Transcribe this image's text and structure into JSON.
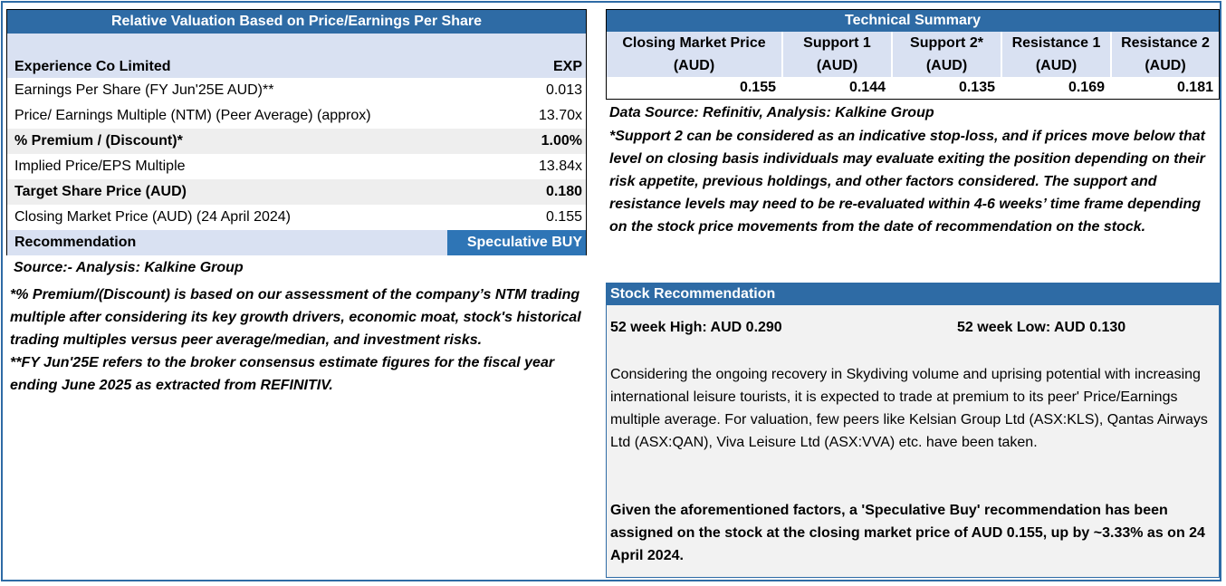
{
  "valuation": {
    "title": "Relative Valuation Based on Price/Earnings Per Share",
    "company": "Experience Co Limited",
    "ticker": "EXP",
    "rows": [
      {
        "label": "Earnings Per Share (FY Jun'25E AUD)**",
        "value": "0.013"
      },
      {
        "label": "Price/ Earnings Multiple (NTM) (Peer Average) (approx)",
        "value": "13.70x"
      },
      {
        "label": "% Premium / (Discount)*",
        "value": "1.00%"
      },
      {
        "label": "Implied Price/EPS Multiple",
        "value": "13.84x"
      },
      {
        "label": "Target Share Price (AUD)",
        "value": "0.180"
      },
      {
        "label": "Closing Market Price (AUD) (24 April 2024)",
        "value": "0.155"
      }
    ],
    "recommendation_label": "Recommendation",
    "recommendation_value": "Speculative BUY",
    "source": "Source:- Analysis: Kalkine Group",
    "note_premium": "*% Premium/(Discount) is based on our assessment of the company’s NTM trading multiple after considering its key growth drivers, economic moat, stock's historical trading multiples versus peer average/median, and investment risks.",
    "note_fy": "**FY Jun'25E refers to the broker consensus estimate figures for the fiscal year ending June 2025 as extracted from REFINITIV."
  },
  "technical": {
    "title": "Technical Summary",
    "columns": [
      {
        "line1": "Closing Market Price",
        "line2": "(AUD)",
        "value": "0.155"
      },
      {
        "line1": "Support 1",
        "line2": "(AUD)",
        "value": "0.144"
      },
      {
        "line1": "Support 2*",
        "line2": "(AUD)",
        "value": "0.135"
      },
      {
        "line1": "Resistance 1",
        "line2": "(AUD)",
        "value": "0.169"
      },
      {
        "line1": "Resistance 2",
        "line2": "(AUD)",
        "value": "0.181"
      }
    ],
    "source": "Data Source: Refinitiv, Analysis: Kalkine Group",
    "note": "*Support 2 can be considered as an indicative stop-loss, and if prices move below that level on closing basis individuals may evaluate exiting the position depending on their risk appetite, previous holdings, and other factors considered. The support and resistance levels may need to be re-evaluated within 4-6 weeks’ time frame depending on the stock price movements from the date of recommendation on the stock."
  },
  "stock_rec": {
    "title": "Stock Recommendation",
    "week_high": "52 week High: AUD 0.290",
    "week_low": "52 week Low: AUD 0.130",
    "paragraph": "Considering the ongoing recovery in Skydiving volume and uprising potential with increasing international leisure tourists, it is expected to trade at premium to its peer' Price/Earnings multiple average. For valuation, few peers like Kelsian Group Ltd (ASX:KLS), Qantas Airways Ltd (ASX:QAN), Viva Leisure Ltd (ASX:VVA) etc. have been taken.",
    "conclusion": "Given the aforementioned factors, a 'Speculative Buy' recommendation has been assigned on the stock at the closing market  price of AUD 0.155, up by ~3.33% as on 24 April 2024."
  },
  "colors": {
    "header_blue": "#2e6ba5",
    "rec_cell_blue": "#2e75b6",
    "light_blue": "#d9e1f2",
    "light_gray": "#eeeeee"
  }
}
